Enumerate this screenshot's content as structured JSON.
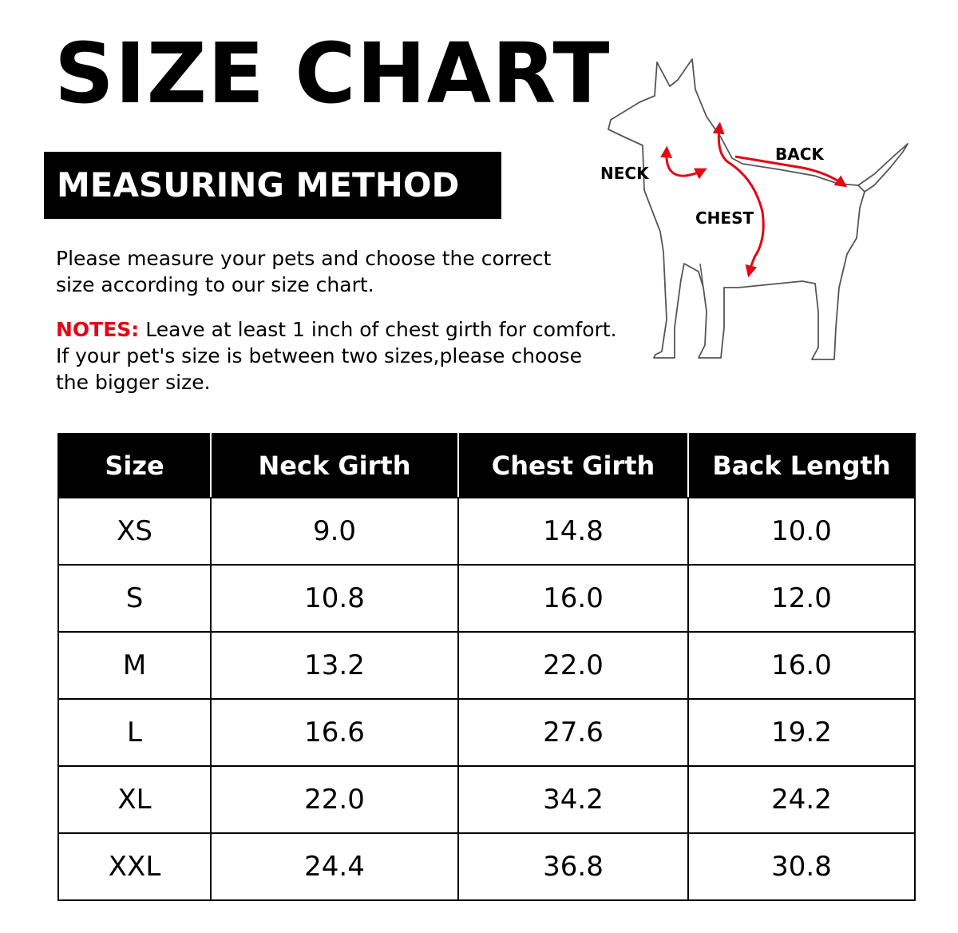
{
  "title": "SIZE CHART",
  "method_heading": "MEASURING METHOD",
  "intro": {
    "line1": "Please measure your pets and choose the correct",
    "line2": "size  according to our size chart."
  },
  "notes": {
    "label": "NOTES:",
    "line1": " Leave at least 1 inch of chest girth for comfort.",
    "line2": "If your pet's size is between two sizes,please choose",
    "line3": "the  bigger size."
  },
  "diagram": {
    "neck_label": "NECK",
    "back_label": "BACK",
    "chest_label": "CHEST",
    "arrow_color": "#e30613"
  },
  "table": {
    "headers": [
      "Size",
      "Neck Girth",
      "Chest Girth",
      "Back Length"
    ],
    "rows": [
      [
        "XS",
        "9.0",
        "14.8",
        "10.0"
      ],
      [
        "S",
        "10.8",
        "16.0",
        "12.0"
      ],
      [
        "M",
        "13.2",
        "22.0",
        "16.0"
      ],
      [
        "L",
        "16.6",
        "27.6",
        "19.2"
      ],
      [
        "XL",
        "22.0",
        "34.2",
        "24.2"
      ],
      [
        "XXL",
        "24.4",
        "36.8",
        "30.8"
      ]
    ]
  }
}
